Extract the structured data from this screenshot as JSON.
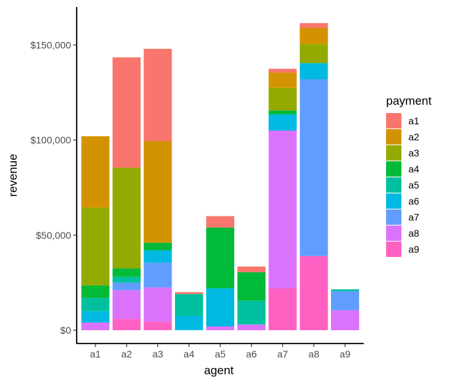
{
  "chart_data": {
    "type": "bar",
    "stacked": true,
    "xlabel": "agent",
    "ylabel": "revenue",
    "legend_title": "payment",
    "legend_position": "right",
    "grid": false,
    "ylim": [
      -7000,
      170000
    ],
    "yticks": [
      0,
      50000,
      100000,
      150000
    ],
    "ytick_labels": [
      "$0",
      "$50,000",
      "$100,000",
      "$150,000"
    ],
    "categories": [
      "a1",
      "a2",
      "a3",
      "a4",
      "a5",
      "a6",
      "a7",
      "a8",
      "a9"
    ],
    "series": [
      {
        "name": "a1",
        "color": "#F8766D",
        "values": [
          0,
          58000,
          48500,
          1000,
          6000,
          3000,
          2000,
          2500,
          0
        ]
      },
      {
        "name": "a2",
        "color": "#D39200",
        "values": [
          37500,
          0,
          53500,
          0,
          0,
          0,
          8000,
          8500,
          0
        ]
      },
      {
        "name": "a3",
        "color": "#93AA00",
        "values": [
          41000,
          53000,
          0,
          0,
          0,
          0,
          12000,
          10000,
          0
        ]
      },
      {
        "name": "a4",
        "color": "#00BA38",
        "values": [
          6500,
          4500,
          4000,
          0,
          32000,
          15000,
          2000,
          0,
          0
        ]
      },
      {
        "name": "a5",
        "color": "#00C19F",
        "values": [
          7000,
          3000,
          0,
          11500,
          0,
          12500,
          0,
          0,
          1000
        ]
      },
      {
        "name": "a6",
        "color": "#00B9E3",
        "values": [
          6000,
          0,
          6500,
          7500,
          20000,
          0,
          8500,
          8500,
          0
        ]
      },
      {
        "name": "a7",
        "color": "#619CFF",
        "values": [
          0,
          4000,
          13000,
          0,
          0,
          0,
          0,
          93000,
          10000
        ]
      },
      {
        "name": "a8",
        "color": "#DB72FB",
        "values": [
          4000,
          15000,
          18000,
          0,
          2000,
          3000,
          83000,
          0,
          10500
        ]
      },
      {
        "name": "a9",
        "color": "#FF61C3",
        "values": [
          0,
          6000,
          4500,
          0,
          0,
          0,
          22000,
          39000,
          0
        ]
      }
    ]
  }
}
